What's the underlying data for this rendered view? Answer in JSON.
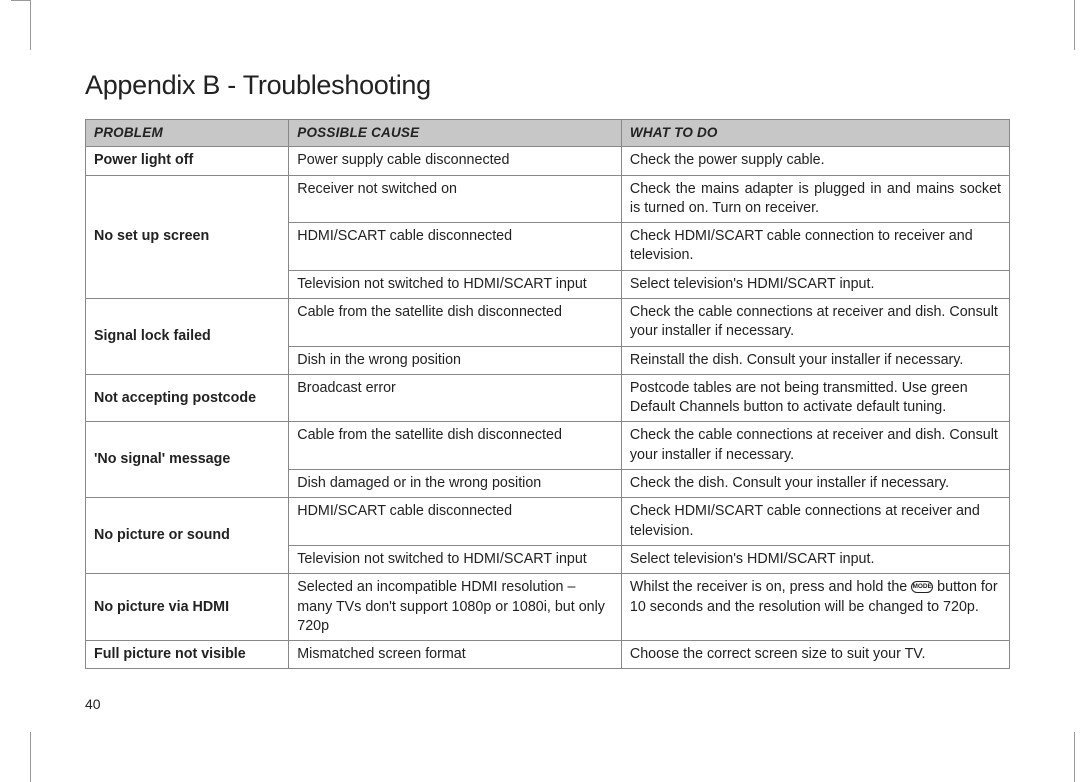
{
  "title": "Appendix B - Troubleshooting",
  "page_number": "40",
  "mode_label": "MODE",
  "table": {
    "headers": {
      "problem": "Problem",
      "cause": "Possible Cause",
      "what": "What To Do"
    },
    "groups": [
      {
        "problem": "Power light off",
        "rows": [
          {
            "cause": "Power supply cable disconnected",
            "what": "Check the power supply cable."
          }
        ]
      },
      {
        "problem": "No set up screen",
        "rows": [
          {
            "cause": "Receiver not switched on",
            "what": "Check the mains adapter is plugged in and mains socket is turned on. Turn on receiver.",
            "justify": true
          },
          {
            "cause": "HDMI/SCART cable disconnected",
            "what": "Check HDMI/SCART cable connection to receiver and television."
          },
          {
            "cause": "Television not switched to HDMI/SCART input",
            "what": "Select television's HDMI/SCART input."
          }
        ]
      },
      {
        "problem": "Signal lock failed",
        "rows": [
          {
            "cause": "Cable from the satellite dish disconnected",
            "what": "Check the cable connections at receiver and dish. Consult your installer if necessary."
          },
          {
            "cause": "Dish in the wrong position",
            "what": "Reinstall the dish. Consult your installer if necessary."
          }
        ]
      },
      {
        "problem": "Not accepting postcode",
        "rows": [
          {
            "cause": "Broadcast error",
            "what": "Postcode tables are not being transmitted. Use green Default Channels button to activate default tuning."
          }
        ]
      },
      {
        "problem": "'No signal' message",
        "rows": [
          {
            "cause": "Cable from the satellite dish disconnected",
            "what": "Check the cable connections at receiver and dish. Consult your installer if necessary."
          },
          {
            "cause": "Dish damaged or in the wrong position",
            "what": "Check the dish. Consult your installer if necessary."
          }
        ]
      },
      {
        "problem": "No picture or sound",
        "rows": [
          {
            "cause": "HDMI/SCART cable disconnected",
            "what": "Check HDMI/SCART cable connections at receiver and television."
          },
          {
            "cause": "Television not switched to HDMI/SCART input",
            "what": "Select television's HDMI/SCART input."
          }
        ]
      },
      {
        "problem": "No picture via HDMI",
        "rows": [
          {
            "cause": "Selected an incompatible HDMI resolution – many TVs don't support 1080p or 1080i, but only 720p",
            "what_pre": "Whilst the receiver is on, press and hold the ",
            "what_post": " button for 10 seconds and the resolution will be changed to 720p.",
            "has_icon": true
          }
        ]
      },
      {
        "problem": "Full picture not visible",
        "rows": [
          {
            "cause": "Mismatched screen format",
            "what": "Choose the correct screen size to suit your TV."
          }
        ]
      }
    ]
  }
}
